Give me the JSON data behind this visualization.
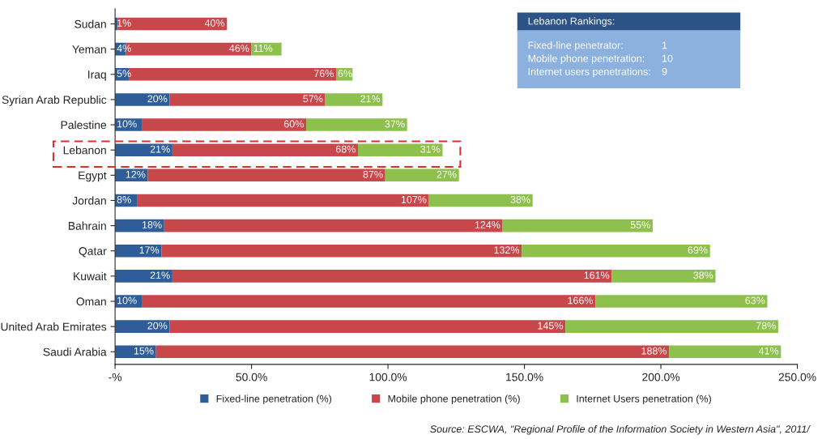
{
  "chart_data": {
    "type": "bar",
    "orientation": "horizontal",
    "stacked": true,
    "categories": [
      "Sudan",
      "Yeman",
      "Iraq",
      "Syrian Arab Republic",
      "Palestine",
      "Lebanon",
      "Egypt",
      "Jordan",
      "Bahrain",
      "Qatar",
      "Kuwait",
      "Oman",
      "United Arab Emirates",
      "Saudi Arabia"
    ],
    "series": [
      {
        "name": "Fixed-line penetration (%)",
        "color": "#2e5d9a",
        "values": [
          1,
          4,
          5,
          20,
          10,
          21,
          12,
          8,
          18,
          17,
          21,
          10,
          20,
          15
        ],
        "value_labels": [
          "1%",
          "4%",
          "5%",
          "20%",
          "10%",
          "21%",
          "12%",
          "8%",
          "18%",
          "17%",
          "21%",
          "10%",
          "20%",
          "15%"
        ]
      },
      {
        "name": "Mobile phone penetration (%)",
        "color": "#c7474a",
        "values": [
          40,
          46,
          76,
          57,
          60,
          68,
          87,
          107,
          124,
          132,
          161,
          166,
          145,
          188
        ],
        "value_labels": [
          "40%",
          "46%",
          "76%",
          "57%",
          "60%",
          "68%",
          "87%",
          "107%",
          "124%",
          "132%",
          "161%",
          "166%",
          "145%",
          "188%"
        ]
      },
      {
        "name": "Internet Users penetration (%)",
        "color": "#8dc04c",
        "values": [
          null,
          11,
          6,
          21,
          37,
          31,
          27,
          38,
          55,
          69,
          38,
          63,
          78,
          41
        ],
        "value_labels": [
          null,
          "11%",
          "6%",
          "21%",
          "37%",
          "31%",
          "27%",
          "38%",
          "55%",
          "69%",
          "38%",
          "63%",
          "78%",
          "41%"
        ]
      }
    ],
    "xlim": [
      0,
      250
    ],
    "xticks": [
      {
        "value": 0,
        "label": "-%"
      },
      {
        "value": 50,
        "label": "50.0%"
      },
      {
        "value": 100,
        "label": "100.0%"
      },
      {
        "value": 150,
        "label": "150.0%"
      },
      {
        "value": 200,
        "label": "200.0%"
      },
      {
        "value": 250,
        "label": "250.0%"
      }
    ],
    "grid": false,
    "legend": "bottom",
    "annotations": [
      "Source: ESCWA, \"Regional Profile of the Information Society in Western Asia\", 2011/",
      "Lebanon Rankings:",
      "Fixed-line penetrator:",
      "1",
      "Mobile phone penetration:",
      "10",
      "Internet users penetrations:",
      "9"
    ]
  }
}
